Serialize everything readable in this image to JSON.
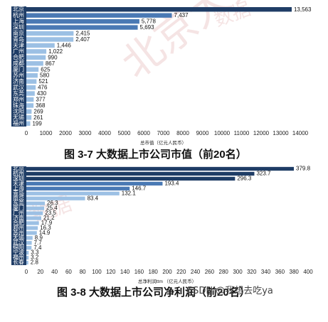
{
  "watermark": {
    "text": "北京大数据",
    "text2": "数据"
  },
  "footer_credit": "CSDN @我想去吃ya",
  "colors": {
    "band": "#1f3d66",
    "bar_dark": "#1f3d66",
    "bar_mid": "#4a79b4",
    "bar_light": "#9cc0e4"
  },
  "chart_data": [
    {
      "type": "bar",
      "orientation": "horizontal",
      "title": "图 3-7  大数据上市公司市值（前20名）",
      "xlabel": "总市值（亿元人民币）",
      "xlim": [
        0,
        14000
      ],
      "xticks": [
        0,
        1000,
        2000,
        3000,
        4000,
        5000,
        6000,
        7000,
        8000,
        9000,
        10000,
        11000,
        12000,
        13000,
        14000
      ],
      "categories": [
        "北京",
        "杭州",
        "上海",
        "深圳",
        "南京",
        "青岛",
        "天津",
        "广州",
        "合肥",
        "成都",
        "厦门",
        "苏州",
        "济南",
        "武汉",
        "东莞",
        "郑州",
        "珠海",
        "沈阳",
        "无锡",
        "福州"
      ],
      "values": [
        13563,
        7437,
        5778,
        5693,
        2415,
        2407,
        1446,
        1022,
        990,
        867,
        625,
        580,
        521,
        476,
        430,
        377,
        368,
        269,
        261,
        199
      ],
      "value_labels": [
        "13,563",
        "7,437",
        "5,778",
        "5,693",
        "2,415",
        "2,407",
        "1,446",
        "1,022",
        "990",
        "867",
        "625",
        "580",
        "521",
        "476",
        "430",
        "377",
        "368",
        "269",
        "261",
        "199"
      ]
    },
    {
      "type": "bar",
      "orientation": "horizontal",
      "title": "图 3-8  大数据上市公司净利润（前20名）",
      "xlabel": "总净利润ttm （亿元人民币）",
      "xlim": [
        0,
        400
      ],
      "xticks": [
        0,
        20,
        40,
        60,
        80,
        100,
        120,
        140,
        160,
        180,
        200,
        220,
        240,
        260,
        280,
        300,
        320,
        340,
        360,
        380,
        400
      ],
      "categories": [
        "北京",
        "杭州",
        "深圳",
        "天津",
        "上海",
        "青岛",
        "南京",
        "东莞",
        "厦门",
        "广州",
        "济南",
        "合肥",
        "郑州",
        "苏州",
        "无锡",
        "武汉",
        "绵阳",
        "宁波",
        "福州",
        "长春"
      ],
      "values": [
        379.8,
        323.7,
        296.3,
        193.4,
        146.7,
        132.1,
        83.4,
        26.3,
        25.4,
        23.5,
        21.2,
        17.9,
        16.3,
        14.9,
        8.9,
        7.7,
        7.4,
        3.3,
        3.2,
        2.8
      ],
      "value_labels": [
        "379.8",
        "323.7",
        "296.3",
        "193.4",
        "146.7",
        "132.1",
        "83.4",
        "26.3",
        "25.4",
        "23.5",
        "21.2",
        "17.9",
        "16.3",
        "14.9",
        "8.9",
        "7.7",
        "7.4",
        "3.3",
        "3.2",
        "2.8"
      ]
    }
  ]
}
